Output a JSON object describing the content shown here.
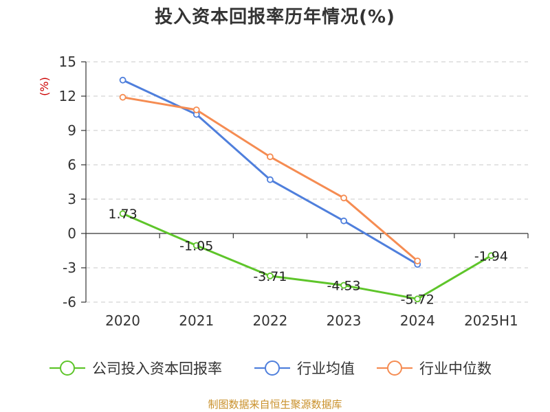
{
  "chart_data": {
    "type": "line",
    "title": "投入资本回报率历年情况(%)",
    "ylabel": "(%)",
    "categories": [
      "2020",
      "2021",
      "2022",
      "2023",
      "2024",
      "2025H1"
    ],
    "ylim": [
      -6,
      15
    ],
    "yticks": [
      15,
      12,
      9,
      6,
      3,
      0,
      -3,
      -6
    ],
    "grid": true,
    "legend_position": "bottom",
    "series": [
      {
        "name": "公司投入资本回报率",
        "color": "#5ec52a",
        "values": [
          1.73,
          -1.05,
          -3.71,
          -4.53,
          -5.72,
          -1.94
        ],
        "labels": [
          "1.73",
          "-1.05",
          "-3.71",
          "-4.53",
          "-5.72",
          "-1.94"
        ]
      },
      {
        "name": "行业均值",
        "color": "#4f7fdc",
        "values": [
          13.4,
          10.4,
          4.7,
          1.1,
          -2.7,
          null
        ]
      },
      {
        "name": "行业中位数",
        "color": "#f58c52",
        "values": [
          11.9,
          10.8,
          6.7,
          3.1,
          -2.4,
          null
        ]
      }
    ],
    "source": "制图数据来自恒生聚源数据库"
  }
}
